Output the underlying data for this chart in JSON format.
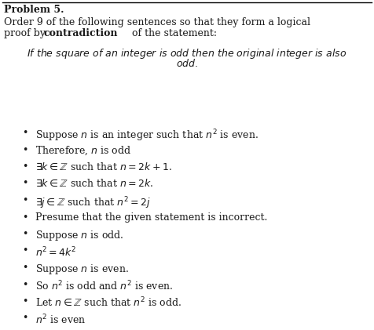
{
  "title": "Problem 5.",
  "bg_color": "#ffffff",
  "text_color": "#1a1a1a",
  "figsize": [
    4.76,
    4.21
  ],
  "dpi": 100,
  "bullet_items": [
    "Suppose $n$ is an integer such that $n^2$ is even.",
    "Therefore, $n$ is odd",
    "$\\exists k \\in \\mathbb{Z}$ such that $n = 2k+1$.",
    "$\\exists k \\in \\mathbb{Z}$ such that $n = 2k$.",
    "$\\exists j \\in \\mathbb{Z}$ such that $n^2 = 2j$",
    "Presume that the given statement is incorrect.",
    "Suppose $n$ is odd.",
    "$n^2 = 4k^2$",
    "Suppose $n$ is even.",
    "So $n^2$ is odd and $n^2$ is even.",
    "Let $n \\in \\mathbb{Z}$ such that $n^2$ is odd.",
    "$n^2$ is even"
  ],
  "font_size": 9.0,
  "bullet_font_size": 9.0
}
